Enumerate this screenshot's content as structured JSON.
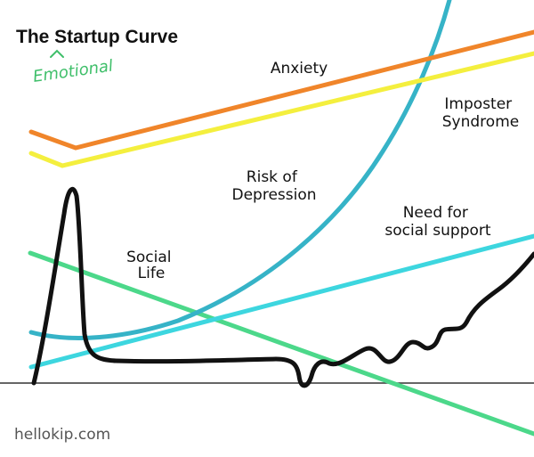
{
  "title": "The Startup Curve",
  "annotation": "Emotional",
  "footer": "hellokip.com",
  "chart_data": {
    "type": "line",
    "title": "The Startup Curve",
    "xlabel": "",
    "ylabel": "",
    "grid": false,
    "axis_visible": "baseline only",
    "series": [
      {
        "name": "Anxiety",
        "color": "#f0852a",
        "label_lines": [
          "Anxiety"
        ]
      },
      {
        "name": "Imposter Syndrome",
        "color": "#f4ef3e",
        "label_lines": [
          "Imposter",
          "Syndrome"
        ]
      },
      {
        "name": "Risk of Depression",
        "color": "#36b3c7",
        "label_lines": [
          "Risk of",
          "Depression"
        ]
      },
      {
        "name": "Need for social support",
        "color": "#3dd6df",
        "label_lines": [
          "Need for",
          "social support"
        ]
      },
      {
        "name": "Social Life",
        "color": "#4cd88a",
        "label_lines": [
          "Social",
          "Life"
        ]
      },
      {
        "name": "Startup curve",
        "color": "#111111",
        "label_lines": []
      }
    ]
  }
}
